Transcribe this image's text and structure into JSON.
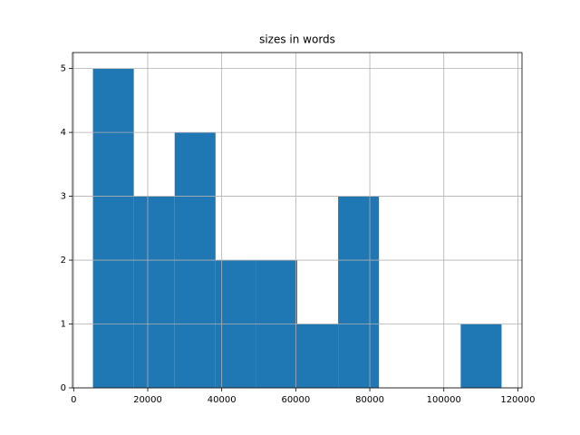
{
  "chart_data": {
    "type": "histogram",
    "title": "sizes in words",
    "bins": [
      5200,
      16240,
      27280,
      38320,
      49360,
      60400,
      71440,
      82480,
      93520,
      104560,
      115600
    ],
    "values": [
      5,
      3,
      4,
      2,
      2,
      1,
      3,
      0,
      0,
      1
    ],
    "color": "#1f77b4",
    "xlim": [
      -320,
      121120
    ],
    "xticks": [
      0,
      20000,
      40000,
      60000,
      80000,
      100000,
      120000
    ],
    "ylim": [
      0,
      5.25
    ],
    "yticks": [
      0,
      1,
      2,
      3,
      4,
      5
    ],
    "grid": true
  }
}
